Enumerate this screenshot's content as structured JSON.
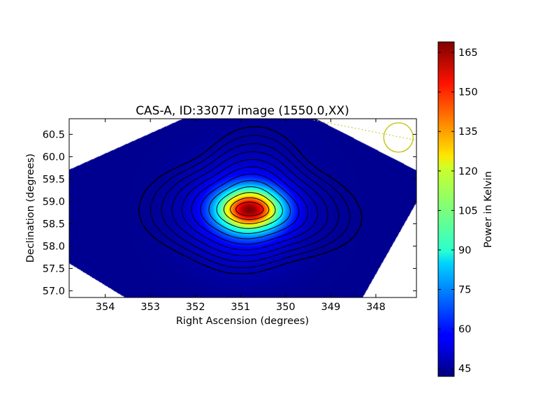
{
  "chart_data": {
    "type": "heatmap",
    "title": "CAS-A, ID:33077 image (1550.0,XX)",
    "xlabel": "Right Ascension (degrees)",
    "ylabel": "Declination (degrees)",
    "xlim": [
      354.8,
      347.1
    ],
    "ylim": [
      56.85,
      60.85
    ],
    "x_ticks": [
      354,
      353,
      352,
      351,
      350,
      349,
      348
    ],
    "x_tick_labels": [
      "354",
      "353",
      "352",
      "351",
      "350",
      "349",
      "348"
    ],
    "y_ticks": [
      57.0,
      57.5,
      58.0,
      58.5,
      59.0,
      59.5,
      60.0,
      60.5
    ],
    "y_tick_labels": [
      "57.0",
      "57.5",
      "58.0",
      "58.5",
      "59.0",
      "59.5",
      "60.0",
      "60.5"
    ],
    "colormap": "jet",
    "colorbar": {
      "label": "Power in Kelvin",
      "range": [
        42,
        169
      ],
      "ticks": [
        45,
        60,
        75,
        90,
        105,
        120,
        135,
        150,
        165
      ],
      "tick_labels": [
        "45",
        "60",
        "75",
        "90",
        "105",
        "120",
        "135",
        "150",
        "165"
      ]
    },
    "peak": {
      "ra": 350.8,
      "dec": 58.82,
      "value": 169
    },
    "background_level": 44,
    "contour_count": 12,
    "beam_marker": {
      "ra": 347.5,
      "dec": 60.43,
      "color": "#bfbf00",
      "style": "circle with dotted line"
    },
    "grid": false
  }
}
